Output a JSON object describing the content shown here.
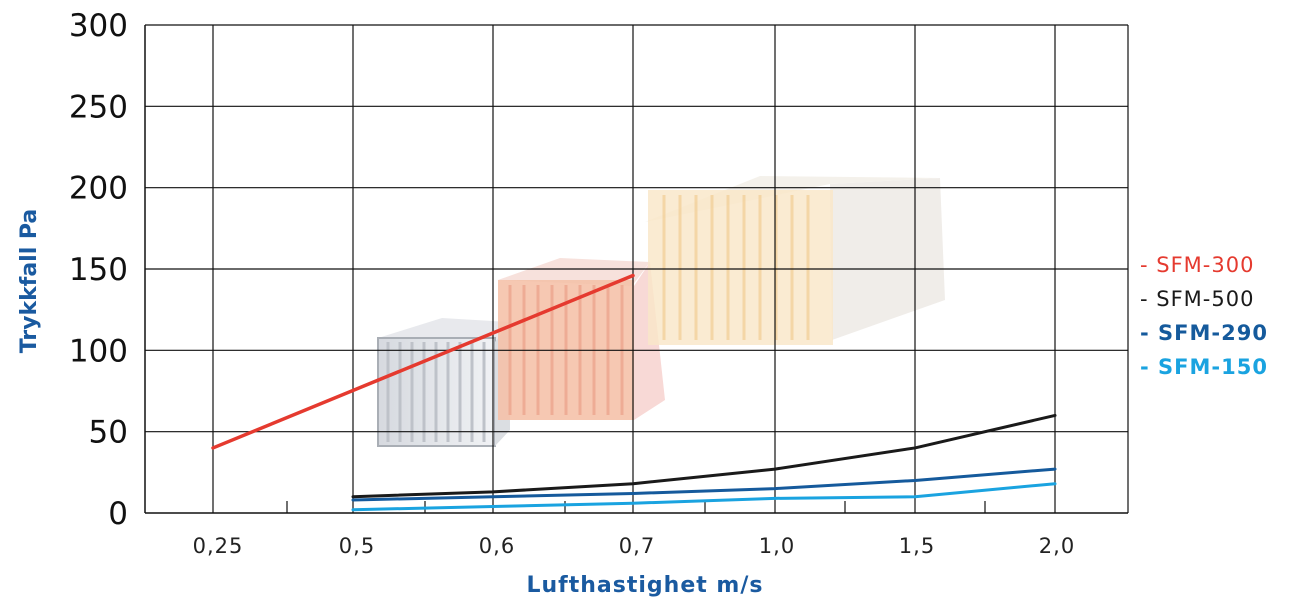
{
  "chart_data": {
    "type": "line",
    "title": "",
    "xlabel": "Lufthastighet m/s",
    "ylabel": "Trykkfall Pa",
    "ylim": [
      0,
      300
    ],
    "yticks": [
      "0",
      "50",
      "100",
      "150",
      "200",
      "250",
      "300"
    ],
    "xcategories": [
      "0,25",
      "0,5",
      "0,6",
      "0,7",
      "1,0",
      "1,5",
      "2,0"
    ],
    "grid": true,
    "legend_position": "right",
    "series": [
      {
        "name": "- SFM-300",
        "color": "#e53a2f",
        "weight": "normal",
        "points": [
          [
            0,
            40
          ],
          [
            3,
            146
          ]
        ]
      },
      {
        "name": "- SFM-500",
        "color": "#1a1a1a",
        "weight": "normal",
        "points": [
          [
            1,
            10
          ],
          [
            2,
            13
          ],
          [
            3,
            18
          ],
          [
            4,
            27
          ],
          [
            5,
            40
          ],
          [
            6,
            60
          ]
        ]
      },
      {
        "name": "- SFM-290",
        "color": "#155a9c",
        "weight": "bold",
        "points": [
          [
            1,
            8
          ],
          [
            2,
            10
          ],
          [
            3,
            12
          ],
          [
            4,
            15
          ],
          [
            5,
            20
          ],
          [
            6,
            27
          ]
        ]
      },
      {
        "name": "- SFM-150",
        "color": "#1aa3e0",
        "weight": "bold",
        "points": [
          [
            1,
            2
          ],
          [
            2,
            4
          ],
          [
            3,
            6
          ],
          [
            4,
            9
          ],
          [
            5,
            10
          ],
          [
            6,
            18
          ]
        ]
      }
    ]
  }
}
